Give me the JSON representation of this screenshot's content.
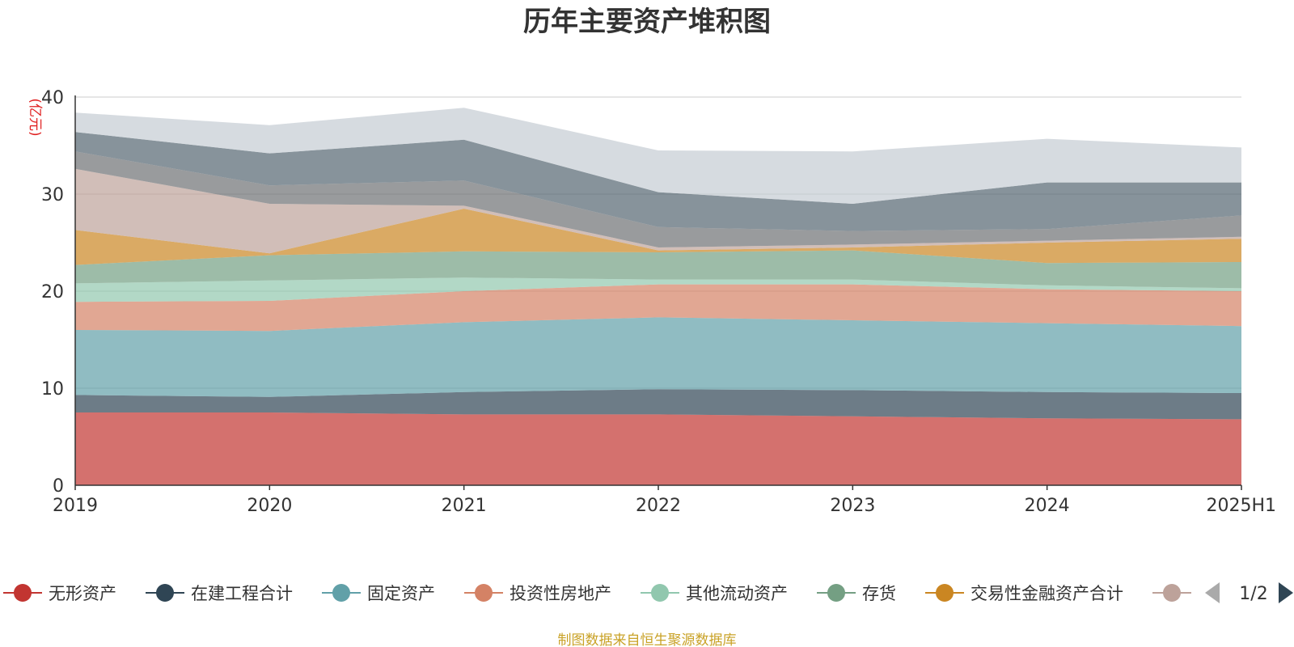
{
  "chart_data": {
    "type": "area",
    "stacked": true,
    "title": "历年主要资产堆积图",
    "unit_label": "(亿元)",
    "x": [
      "2019",
      "2020",
      "2021",
      "2022",
      "2023",
      "2024",
      "2025H1"
    ],
    "ylim": [
      0,
      40
    ],
    "y_ticks": [
      "0",
      "10",
      "20",
      "30",
      "40"
    ],
    "grid": true,
    "series": [
      {
        "name": "无形资产",
        "color": "#c23531",
        "values": [
          7.5,
          7.5,
          7.3,
          7.3,
          7.1,
          6.9,
          6.8
        ]
      },
      {
        "name": "在建工程合计",
        "color": "#2f4554",
        "values": [
          1.8,
          1.6,
          2.3,
          2.6,
          2.7,
          2.7,
          2.7
        ]
      },
      {
        "name": "固定资产",
        "color": "#61a0a8",
        "values": [
          6.7,
          6.8,
          7.2,
          7.4,
          7.2,
          7.1,
          6.9
        ]
      },
      {
        "name": "投资性房地产",
        "color": "#d48265",
        "values": [
          2.9,
          3.1,
          3.2,
          3.4,
          3.7,
          3.5,
          3.6
        ]
      },
      {
        "name": "其他流动资产",
        "color": "#91c7ae",
        "values": [
          1.9,
          2.1,
          1.4,
          0.5,
          0.5,
          0.4,
          0.3
        ]
      },
      {
        "name": "存货",
        "color": "#749f83",
        "values": [
          1.9,
          2.6,
          2.7,
          2.8,
          3.0,
          2.3,
          2.7
        ]
      },
      {
        "name": "交易性金融资产合计",
        "color": "#ca8622",
        "values": [
          3.6,
          0.2,
          4.4,
          0.2,
          0.3,
          2.1,
          2.4
        ]
      },
      {
        "name": "",
        "color": "#bda29a",
        "values": [
          6.3,
          5.1,
          0.3,
          0.3,
          0.3,
          0.2,
          0.2
        ]
      },
      {
        "name": "",
        "color": "#6e7074",
        "values": [
          1.8,
          1.9,
          2.6,
          2.1,
          1.4,
          1.2,
          2.2
        ]
      },
      {
        "name": "",
        "color": "#546570",
        "values": [
          2.0,
          3.3,
          4.2,
          3.6,
          2.8,
          4.8,
          3.4
        ]
      },
      {
        "name": "",
        "color": "#c4ccd3",
        "values": [
          2.0,
          2.9,
          3.3,
          4.3,
          5.4,
          4.5,
          3.6
        ]
      }
    ],
    "legend_position": "bottom",
    "legend_page": "1/2"
  },
  "source_note": "制图数据来自恒生聚源数据库"
}
